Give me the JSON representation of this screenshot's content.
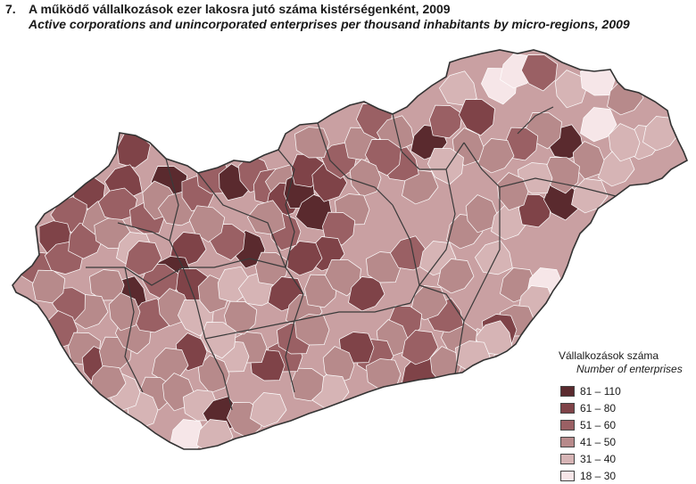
{
  "header": {
    "number": "7.",
    "title": "A működő vállalkozások ezer lakosra jutó száma kistérségenként, 2009",
    "subtitle": "Active corporations and unincorporated enterprises per thousand inhabitants by micro-regions, 2009"
  },
  "legend": {
    "title": "Vállalkozások száma",
    "subtitle": "Number of enterprises",
    "classes": [
      {
        "label": "81 – 110",
        "color": "#5a2a2e"
      },
      {
        "label": "61 –   80",
        "color": "#7f4348"
      },
      {
        "label": "51 –   60",
        "color": "#9a6064"
      },
      {
        "label": "41 –   50",
        "color": "#b78a8b"
      },
      {
        "label": "31 –   40",
        "color": "#d6b4b5"
      },
      {
        "label": "18 –   30",
        "color": "#f6e6e8"
      }
    ]
  },
  "map": {
    "country": "Hungary",
    "boundary_color": "#3a3a3a"
  }
}
